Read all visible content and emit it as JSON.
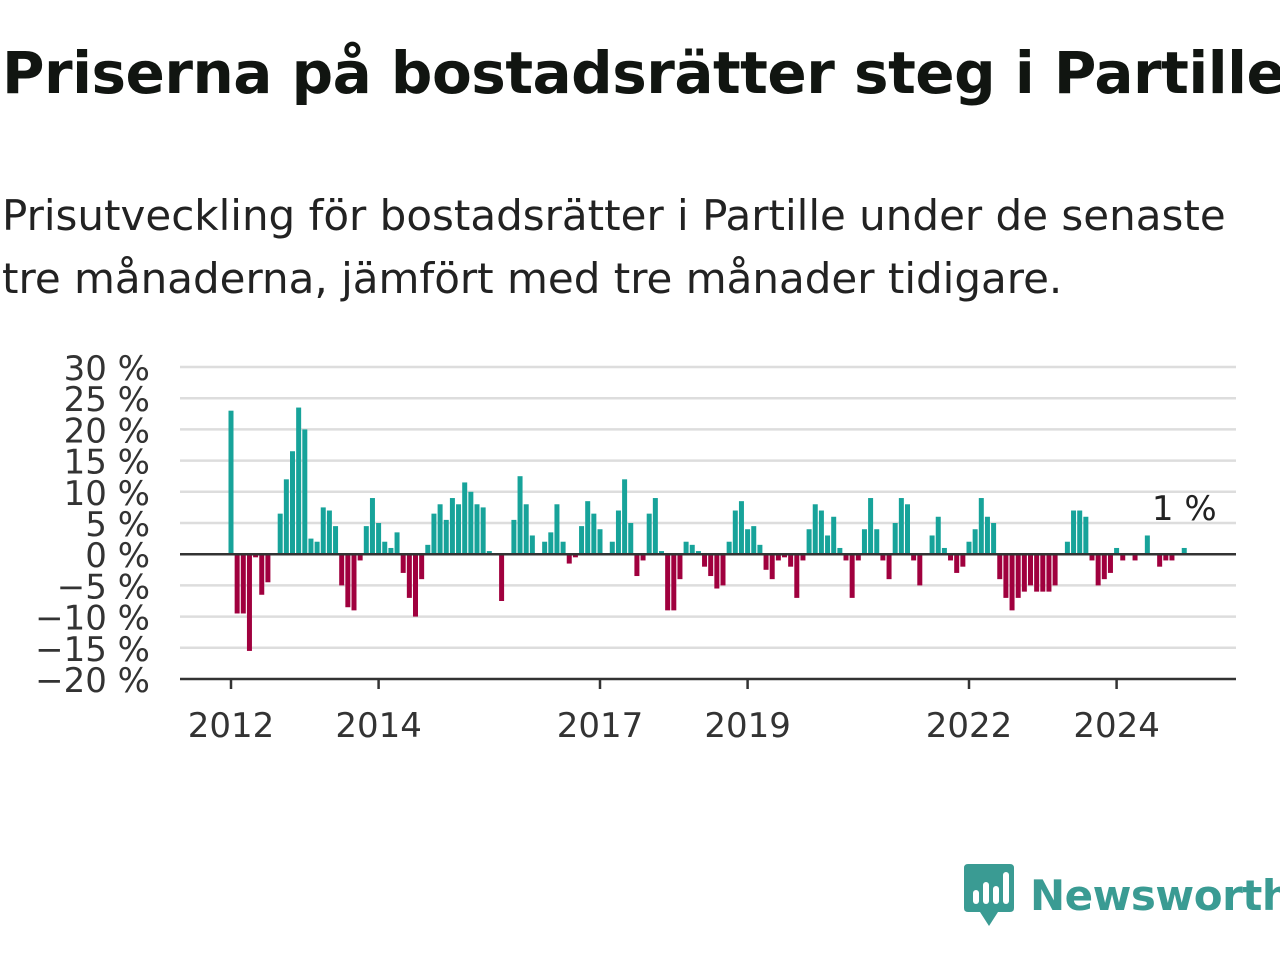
{
  "header": {
    "title": "Priserna på bostadsrätter steg i Partille",
    "subtitle": "Prisutveckling för bostadsrätter i Partille under de senaste tre månaderna, jämfört med tre månader tidigare."
  },
  "brand": {
    "name": "Newsworthy",
    "icon": "newsworthy-logo-icon",
    "color": "#3a9b93"
  },
  "chart_data": {
    "type": "bar",
    "title": "",
    "xlabel": "",
    "ylabel": "",
    "ylim": [
      -20,
      30
    ],
    "yticks": [
      30,
      25,
      20,
      15,
      10,
      5,
      0,
      -5,
      -10,
      -15,
      -20
    ],
    "ytick_labels": [
      "30 %",
      "25 %",
      "20 %",
      "15 %",
      "10 %",
      "5 %",
      "0 %",
      "−5 %",
      "−10 %",
      "−15 %",
      "−20 %"
    ],
    "xtick_labels": [
      "2012",
      "2014",
      "2017",
      "2019",
      "2022",
      "2024"
    ],
    "xtick_positions": [
      2012.0,
      2014.0,
      2017.0,
      2019.0,
      2022.0,
      2024.0
    ],
    "x_unit": "month",
    "grid": true,
    "colors": {
      "positive": "#17a39a",
      "negative": "#a0003e",
      "grid": "#dddddd",
      "axis": "#333333"
    },
    "annotation": {
      "text": "1 %",
      "at": "last"
    },
    "points": [
      {
        "month": "2012-01",
        "value": 23
      },
      {
        "month": "2012-02",
        "value": -9.5
      },
      {
        "month": "2012-03",
        "value": -9.5
      },
      {
        "month": "2012-04",
        "value": -15.5
      },
      {
        "month": "2012-05",
        "value": -0.5
      },
      {
        "month": "2012-06",
        "value": -6.5
      },
      {
        "month": "2012-07",
        "value": -4.5
      },
      {
        "month": "2012-08",
        "value": 0
      },
      {
        "month": "2012-09",
        "value": 6.5
      },
      {
        "month": "2012-10",
        "value": 12
      },
      {
        "month": "2012-11",
        "value": 16.5
      },
      {
        "month": "2012-12",
        "value": 23.5
      },
      {
        "month": "2013-01",
        "value": 20
      },
      {
        "month": "2013-02",
        "value": 2.5
      },
      {
        "month": "2013-03",
        "value": 2
      },
      {
        "month": "2013-04",
        "value": 7.5
      },
      {
        "month": "2013-05",
        "value": 7
      },
      {
        "month": "2013-06",
        "value": 4.5
      },
      {
        "month": "2013-07",
        "value": -5
      },
      {
        "month": "2013-08",
        "value": -8.5
      },
      {
        "month": "2013-09",
        "value": -9
      },
      {
        "month": "2013-10",
        "value": -1
      },
      {
        "month": "2013-11",
        "value": 4.5
      },
      {
        "month": "2013-12",
        "value": 9
      },
      {
        "month": "2014-01",
        "value": 5
      },
      {
        "month": "2014-02",
        "value": 2
      },
      {
        "month": "2014-03",
        "value": 1
      },
      {
        "month": "2014-04",
        "value": 3.5
      },
      {
        "month": "2014-05",
        "value": -3
      },
      {
        "month": "2014-06",
        "value": -7
      },
      {
        "month": "2014-07",
        "value": -10
      },
      {
        "month": "2014-08",
        "value": -4
      },
      {
        "month": "2014-09",
        "value": 1.5
      },
      {
        "month": "2014-10",
        "value": 6.5
      },
      {
        "month": "2014-11",
        "value": 8
      },
      {
        "month": "2014-12",
        "value": 5.5
      },
      {
        "month": "2015-01",
        "value": 9
      },
      {
        "month": "2015-02",
        "value": 8
      },
      {
        "month": "2015-03",
        "value": 11.5
      },
      {
        "month": "2015-04",
        "value": 10
      },
      {
        "month": "2015-05",
        "value": 8
      },
      {
        "month": "2015-06",
        "value": 7.5
      },
      {
        "month": "2015-07",
        "value": 0.5
      },
      {
        "month": "2015-08",
        "value": 0
      },
      {
        "month": "2015-09",
        "value": -7.5
      },
      {
        "month": "2015-10",
        "value": 0
      },
      {
        "month": "2015-11",
        "value": 5.5
      },
      {
        "month": "2015-12",
        "value": 12.5
      },
      {
        "month": "2016-01",
        "value": 8
      },
      {
        "month": "2016-02",
        "value": 3
      },
      {
        "month": "2016-03",
        "value": 0
      },
      {
        "month": "2016-04",
        "value": 2
      },
      {
        "month": "2016-05",
        "value": 3.5
      },
      {
        "month": "2016-06",
        "value": 8
      },
      {
        "month": "2016-07",
        "value": 2
      },
      {
        "month": "2016-08",
        "value": -1.5
      },
      {
        "month": "2016-09",
        "value": -0.5
      },
      {
        "month": "2016-10",
        "value": 4.5
      },
      {
        "month": "2016-11",
        "value": 8.5
      },
      {
        "month": "2016-12",
        "value": 6.5
      },
      {
        "month": "2017-01",
        "value": 4
      },
      {
        "month": "2017-02",
        "value": 0
      },
      {
        "month": "2017-03",
        "value": 2
      },
      {
        "month": "2017-04",
        "value": 7
      },
      {
        "month": "2017-05",
        "value": 12
      },
      {
        "month": "2017-06",
        "value": 5
      },
      {
        "month": "2017-07",
        "value": -3.5
      },
      {
        "month": "2017-08",
        "value": -1
      },
      {
        "month": "2017-09",
        "value": 6.5
      },
      {
        "month": "2017-10",
        "value": 9
      },
      {
        "month": "2017-11",
        "value": 0.5
      },
      {
        "month": "2017-12",
        "value": -9
      },
      {
        "month": "2018-01",
        "value": -9
      },
      {
        "month": "2018-02",
        "value": -4
      },
      {
        "month": "2018-03",
        "value": 2
      },
      {
        "month": "2018-04",
        "value": 1.5
      },
      {
        "month": "2018-05",
        "value": 0.5
      },
      {
        "month": "2018-06",
        "value": -2
      },
      {
        "month": "2018-07",
        "value": -3.5
      },
      {
        "month": "2018-08",
        "value": -5.5
      },
      {
        "month": "2018-09",
        "value": -5
      },
      {
        "month": "2018-10",
        "value": 2
      },
      {
        "month": "2018-11",
        "value": 7
      },
      {
        "month": "2018-12",
        "value": 8.5
      },
      {
        "month": "2019-01",
        "value": 4
      },
      {
        "month": "2019-02",
        "value": 4.5
      },
      {
        "month": "2019-03",
        "value": 1.5
      },
      {
        "month": "2019-04",
        "value": -2.5
      },
      {
        "month": "2019-05",
        "value": -4
      },
      {
        "month": "2019-06",
        "value": -1
      },
      {
        "month": "2019-07",
        "value": -0.5
      },
      {
        "month": "2019-08",
        "value": -2
      },
      {
        "month": "2019-09",
        "value": -7
      },
      {
        "month": "2019-10",
        "value": -1
      },
      {
        "month": "2019-11",
        "value": 4
      },
      {
        "month": "2019-12",
        "value": 8
      },
      {
        "month": "2020-01",
        "value": 7
      },
      {
        "month": "2020-02",
        "value": 3
      },
      {
        "month": "2020-03",
        "value": 6
      },
      {
        "month": "2020-04",
        "value": 1
      },
      {
        "month": "2020-05",
        "value": -1
      },
      {
        "month": "2020-06",
        "value": -7
      },
      {
        "month": "2020-07",
        "value": -1
      },
      {
        "month": "2020-08",
        "value": 4
      },
      {
        "month": "2020-09",
        "value": 9
      },
      {
        "month": "2020-10",
        "value": 4
      },
      {
        "month": "2020-11",
        "value": -1
      },
      {
        "month": "2020-12",
        "value": -4
      },
      {
        "month": "2021-01",
        "value": 5
      },
      {
        "month": "2021-02",
        "value": 9
      },
      {
        "month": "2021-03",
        "value": 8
      },
      {
        "month": "2021-04",
        "value": -1
      },
      {
        "month": "2021-05",
        "value": -5
      },
      {
        "month": "2021-06",
        "value": 0
      },
      {
        "month": "2021-07",
        "value": 3
      },
      {
        "month": "2021-08",
        "value": 6
      },
      {
        "month": "2021-09",
        "value": 1
      },
      {
        "month": "2021-10",
        "value": -1
      },
      {
        "month": "2021-11",
        "value": -3
      },
      {
        "month": "2021-12",
        "value": -2
      },
      {
        "month": "2022-01",
        "value": 2
      },
      {
        "month": "2022-02",
        "value": 4
      },
      {
        "month": "2022-03",
        "value": 9
      },
      {
        "month": "2022-04",
        "value": 6
      },
      {
        "month": "2022-05",
        "value": 5
      },
      {
        "month": "2022-06",
        "value": -4
      },
      {
        "month": "2022-07",
        "value": -7
      },
      {
        "month": "2022-08",
        "value": -9
      },
      {
        "month": "2022-09",
        "value": -7
      },
      {
        "month": "2022-10",
        "value": -6
      },
      {
        "month": "2022-11",
        "value": -5
      },
      {
        "month": "2022-12",
        "value": -6
      },
      {
        "month": "2023-01",
        "value": -6
      },
      {
        "month": "2023-02",
        "value": -6
      },
      {
        "month": "2023-03",
        "value": -5
      },
      {
        "month": "2023-04",
        "value": 0
      },
      {
        "month": "2023-05",
        "value": 2
      },
      {
        "month": "2023-06",
        "value": 7
      },
      {
        "month": "2023-07",
        "value": 7
      },
      {
        "month": "2023-08",
        "value": 6
      },
      {
        "month": "2023-09",
        "value": -1
      },
      {
        "month": "2023-10",
        "value": -5
      },
      {
        "month": "2023-11",
        "value": -4
      },
      {
        "month": "2023-12",
        "value": -3
      },
      {
        "month": "2024-01",
        "value": 1
      },
      {
        "month": "2024-02",
        "value": -1
      },
      {
        "month": "2024-03",
        "value": 0
      },
      {
        "month": "2024-04",
        "value": -1
      },
      {
        "month": "2024-05",
        "value": 0
      },
      {
        "month": "2024-06",
        "value": 3
      },
      {
        "month": "2024-07",
        "value": 0
      },
      {
        "month": "2024-08",
        "value": -2
      },
      {
        "month": "2024-09",
        "value": -1
      },
      {
        "month": "2024-10",
        "value": -1
      },
      {
        "month": "2024-11",
        "value": 0
      },
      {
        "month": "2024-12",
        "value": 1
      }
    ]
  }
}
